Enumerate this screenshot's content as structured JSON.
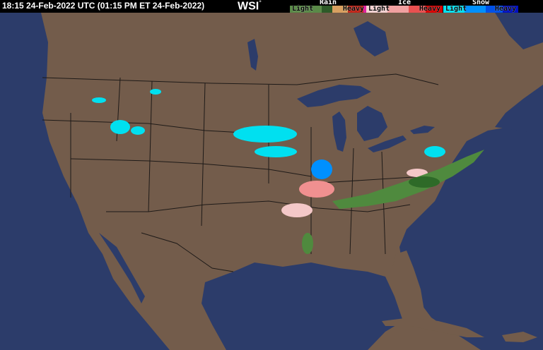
{
  "header": {
    "timestamp": "18:15 24-Feb-2022 UTC  (01:15 PM ET 24-Feb-2022)",
    "logo": "WSI",
    "logo_mark": "°"
  },
  "legend": [
    {
      "type": "Rain",
      "light": "Light",
      "heavy": "Heavy",
      "colors": [
        "#4f8a3e",
        "#2e6a28",
        "#e0a860",
        "#c03020",
        "#e020a0"
      ]
    },
    {
      "type": "Ice",
      "light": "Light",
      "heavy": "Heavy",
      "colors": [
        "#f4c8c8",
        "#f08888",
        "#e84040",
        "#d00000"
      ]
    },
    {
      "type": "Snow",
      "light": "Light",
      "heavy": "Heavy",
      "colors": [
        "#00e0f0",
        "#0090ff",
        "#0040e0",
        "#0000c0"
      ]
    }
  ],
  "map": {
    "land_color": "#735c4b",
    "water_color": "#2c3c6a",
    "border_color": "#1e1a18"
  }
}
